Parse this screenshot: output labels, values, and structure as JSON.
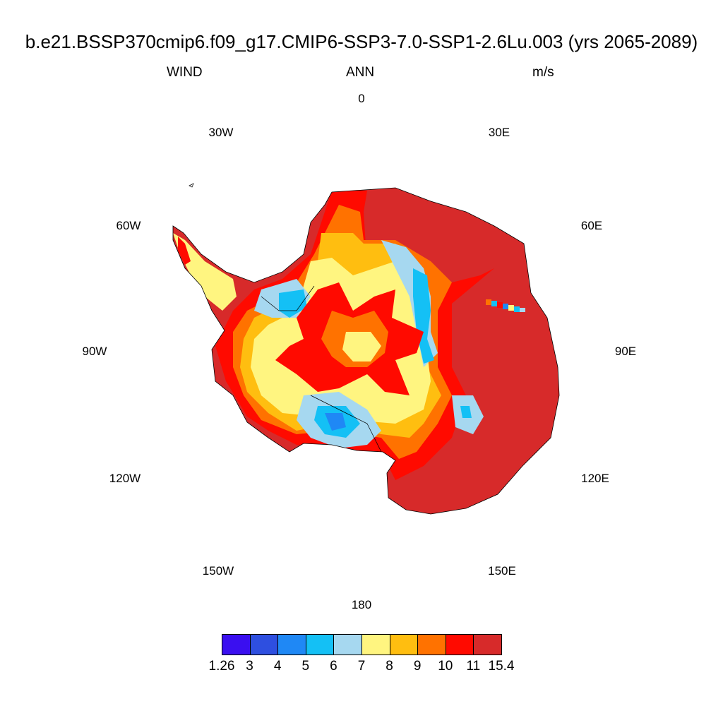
{
  "title": "b.e21.BSSP370cmip6.f09_g17.CMIP6-SSP3-7.0-SSP1-2.6Lu.003 (yrs 2065-2089)",
  "left_label": "WIND",
  "center_label": "ANN",
  "right_label": "m/s",
  "longitude_labels": {
    "lon_0": "0",
    "lon_30e": "30E",
    "lon_60e": "60E",
    "lon_90e": "90E",
    "lon_120e": "120E",
    "lon_150e": "150E",
    "lon_180": "180",
    "lon_150w": "150W",
    "lon_120w": "120W",
    "lon_90w": "90W",
    "lon_60w": "60W",
    "lon_30w": "30W"
  },
  "colorbar": {
    "colors": [
      "#3a0ff0",
      "#2e4fe0",
      "#1f88f5",
      "#14c0f5",
      "#a6d8f0",
      "#fff580",
      "#ffbe10",
      "#ff7200",
      "#ff0a00",
      "#d72a2a"
    ],
    "labels": [
      "1.26",
      "3",
      "4",
      "5",
      "6",
      "7",
      "8",
      "9",
      "10",
      "11",
      "15.4"
    ]
  },
  "map": {
    "projection": "south polar stereographic",
    "variable": "annual mean wind speed over Antarctica",
    "dominant_pattern": "highest speeds (10-15.4) along East Antarctic coast; lowest (4-6) over Ross and Ronne ice shelves and interior lobes"
  }
}
